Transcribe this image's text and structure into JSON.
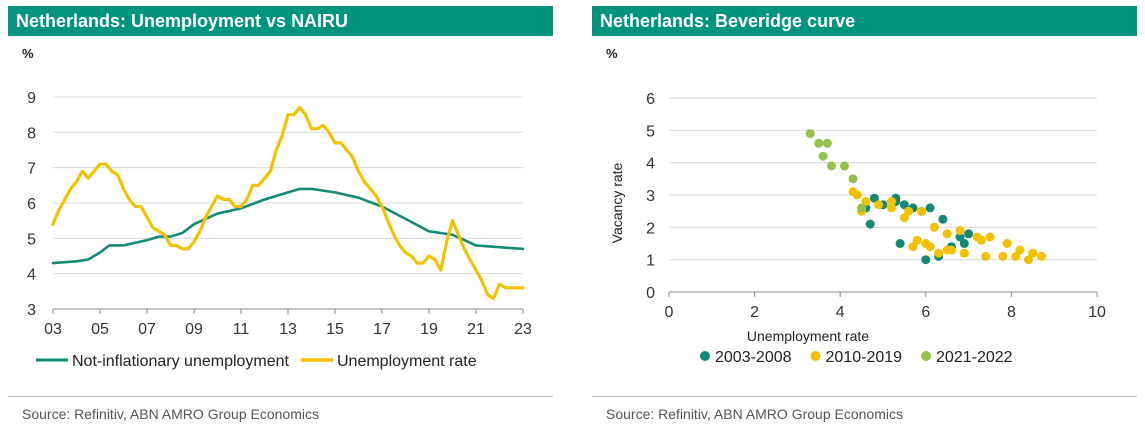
{
  "charts": [
    {
      "panel_title": "Netherlands: Unemployment vs NAIRU",
      "unit": "%",
      "source": "Source: Refinitiv, ABN AMRO Group Economics"
    },
    {
      "panel_title": "Netherlands: Beveridge curve",
      "unit": "%",
      "source": "Source: Refinitiv, ABN AMRO Group Economics"
    }
  ],
  "colors": {
    "teal": "#138a76",
    "gold": "#f2c200",
    "green": "#94c24a",
    "title_bg": "#00947e"
  },
  "chart_data": [
    {
      "type": "line",
      "title": "Netherlands: Unemployment vs NAIRU",
      "ylabel": "%",
      "xlim": [
        2003,
        2023
      ],
      "ylim": [
        3,
        9
      ],
      "x_tick_labels": [
        "03",
        "05",
        "07",
        "09",
        "11",
        "13",
        "15",
        "17",
        "19",
        "21",
        "23"
      ],
      "y_tick_labels": [
        "3",
        "4",
        "5",
        "6",
        "7",
        "8",
        "9"
      ],
      "grid": "horizontal",
      "legend_position": "bottom",
      "series": [
        {
          "name": "Not-inflationary unemployment",
          "color": "#138a76",
          "x": [
            2003.0,
            2004.0,
            2004.5,
            2005.0,
            2005.4,
            2006.0,
            2007.0,
            2007.5,
            2008.0,
            2008.5,
            2009.0,
            2010.0,
            2011.0,
            2012.0,
            2013.0,
            2013.5,
            2014.0,
            2015.0,
            2016.0,
            2017.0,
            2018.0,
            2019.0,
            2019.5,
            2020.0,
            2020.5,
            2021.0,
            2022.0,
            2023.0
          ],
          "y": [
            4.3,
            4.35,
            4.4,
            4.6,
            4.8,
            4.8,
            4.95,
            5.05,
            5.05,
            5.15,
            5.4,
            5.7,
            5.85,
            6.1,
            6.3,
            6.4,
            6.4,
            6.3,
            6.15,
            5.9,
            5.55,
            5.2,
            5.15,
            5.1,
            4.95,
            4.8,
            4.75,
            4.7
          ]
        },
        {
          "name": "Unemployment rate",
          "color": "#f2c200",
          "x": [
            2003.0,
            2003.25,
            2003.5,
            2003.75,
            2004.0,
            2004.25,
            2004.5,
            2004.75,
            2005.0,
            2005.25,
            2005.5,
            2005.75,
            2006.0,
            2006.25,
            2006.5,
            2006.75,
            2007.0,
            2007.25,
            2007.5,
            2007.75,
            2008.0,
            2008.25,
            2008.5,
            2008.75,
            2009.0,
            2009.25,
            2009.5,
            2009.75,
            2010.0,
            2010.25,
            2010.5,
            2010.75,
            2011.0,
            2011.25,
            2011.5,
            2011.75,
            2012.0,
            2012.25,
            2012.5,
            2012.75,
            2013.0,
            2013.25,
            2013.5,
            2013.75,
            2014.0,
            2014.25,
            2014.5,
            2014.75,
            2015.0,
            2015.25,
            2015.5,
            2015.75,
            2016.0,
            2016.25,
            2016.5,
            2016.75,
            2017.0,
            2017.25,
            2017.5,
            2017.75,
            2018.0,
            2018.25,
            2018.5,
            2018.75,
            2019.0,
            2019.25,
            2019.5,
            2019.75,
            2020.0,
            2020.25,
            2020.5,
            2020.75,
            2021.0,
            2021.25,
            2021.5,
            2021.75,
            2022.0,
            2022.25,
            2022.5,
            2022.75,
            2023.0
          ],
          "y": [
            5.4,
            5.8,
            6.1,
            6.4,
            6.6,
            6.9,
            6.7,
            6.9,
            7.1,
            7.1,
            6.9,
            6.8,
            6.4,
            6.1,
            5.9,
            5.9,
            5.6,
            5.3,
            5.2,
            5.1,
            4.8,
            4.8,
            4.7,
            4.7,
            4.9,
            5.2,
            5.6,
            5.9,
            6.2,
            6.1,
            6.1,
            5.9,
            5.9,
            6.1,
            6.5,
            6.5,
            6.7,
            6.9,
            7.5,
            7.9,
            8.5,
            8.5,
            8.7,
            8.5,
            8.1,
            8.1,
            8.2,
            8.0,
            7.7,
            7.7,
            7.5,
            7.3,
            6.9,
            6.6,
            6.4,
            6.2,
            5.9,
            5.5,
            5.1,
            4.8,
            4.6,
            4.5,
            4.3,
            4.3,
            4.5,
            4.4,
            4.1,
            4.9,
            5.5,
            5.1,
            4.7,
            4.4,
            4.1,
            3.8,
            3.4,
            3.3,
            3.7,
            3.6,
            3.6,
            3.6,
            3.6
          ]
        }
      ]
    },
    {
      "type": "scatter",
      "title": "Netherlands: Beveridge curve",
      "ylabel": "Vacancy rate",
      "xlabel": "Unemployment rate",
      "unit_label": "%",
      "xlim": [
        0,
        10
      ],
      "ylim": [
        0,
        6
      ],
      "x_tick_labels": [
        "0",
        "2",
        "4",
        "6",
        "8",
        "10"
      ],
      "y_tick_labels": [
        "0",
        "1",
        "2",
        "3",
        "4",
        "5",
        "6"
      ],
      "grid": "horizontal",
      "legend_position": "bottom",
      "series": [
        {
          "name": "2003-2008",
          "color": "#138a76",
          "points": [
            [
              4.7,
              2.1
            ],
            [
              4.8,
              2.9
            ],
            [
              5.0,
              2.7
            ],
            [
              5.3,
              2.9
            ],
            [
              5.7,
              2.6
            ],
            [
              5.9,
              2.5
            ],
            [
              6.1,
              2.6
            ],
            [
              6.4,
              2.25
            ],
            [
              5.5,
              2.7
            ],
            [
              5.4,
              1.5
            ],
            [
              6.0,
              1.0
            ],
            [
              6.3,
              1.1
            ],
            [
              6.6,
              1.4
            ],
            [
              6.9,
              1.5
            ],
            [
              7.0,
              1.8
            ],
            [
              6.8,
              1.7
            ],
            [
              5.3,
              2.8
            ],
            [
              4.6,
              2.6
            ]
          ]
        },
        {
          "name": "2010-2019",
          "color": "#f2c200",
          "points": [
            [
              4.3,
              3.1
            ],
            [
              4.4,
              3.0
            ],
            [
              4.6,
              2.8
            ],
            [
              4.9,
              2.7
            ],
            [
              5.2,
              2.8
            ],
            [
              5.6,
              2.5
            ],
            [
              5.9,
              2.5
            ],
            [
              6.2,
              2.0
            ],
            [
              6.5,
              1.8
            ],
            [
              6.8,
              1.9
            ],
            [
              7.2,
              1.7
            ],
            [
              7.5,
              1.7
            ],
            [
              7.9,
              1.5
            ],
            [
              8.2,
              1.3
            ],
            [
              8.5,
              1.2
            ],
            [
              8.7,
              1.1
            ],
            [
              8.1,
              1.1
            ],
            [
              7.4,
              1.1
            ],
            [
              6.9,
              1.2
            ],
            [
              6.5,
              1.3
            ],
            [
              6.1,
              1.4
            ],
            [
              5.8,
              1.6
            ],
            [
              6.0,
              1.5
            ],
            [
              6.3,
              1.2
            ],
            [
              5.5,
              2.3
            ],
            [
              5.2,
              2.6
            ],
            [
              4.5,
              2.5
            ],
            [
              5.7,
              1.4
            ],
            [
              6.6,
              1.3
            ],
            [
              7.3,
              1.6
            ],
            [
              8.4,
              1.0
            ],
            [
              7.8,
              1.1
            ]
          ]
        },
        {
          "name": "2021-2022",
          "color": "#94c24a",
          "points": [
            [
              3.3,
              4.9
            ],
            [
              3.5,
              4.6
            ],
            [
              3.6,
              4.2
            ],
            [
              3.7,
              4.6
            ],
            [
              3.8,
              3.9
            ],
            [
              4.1,
              3.9
            ],
            [
              4.3,
              3.5
            ],
            [
              4.5,
              2.6
            ]
          ]
        }
      ]
    }
  ]
}
